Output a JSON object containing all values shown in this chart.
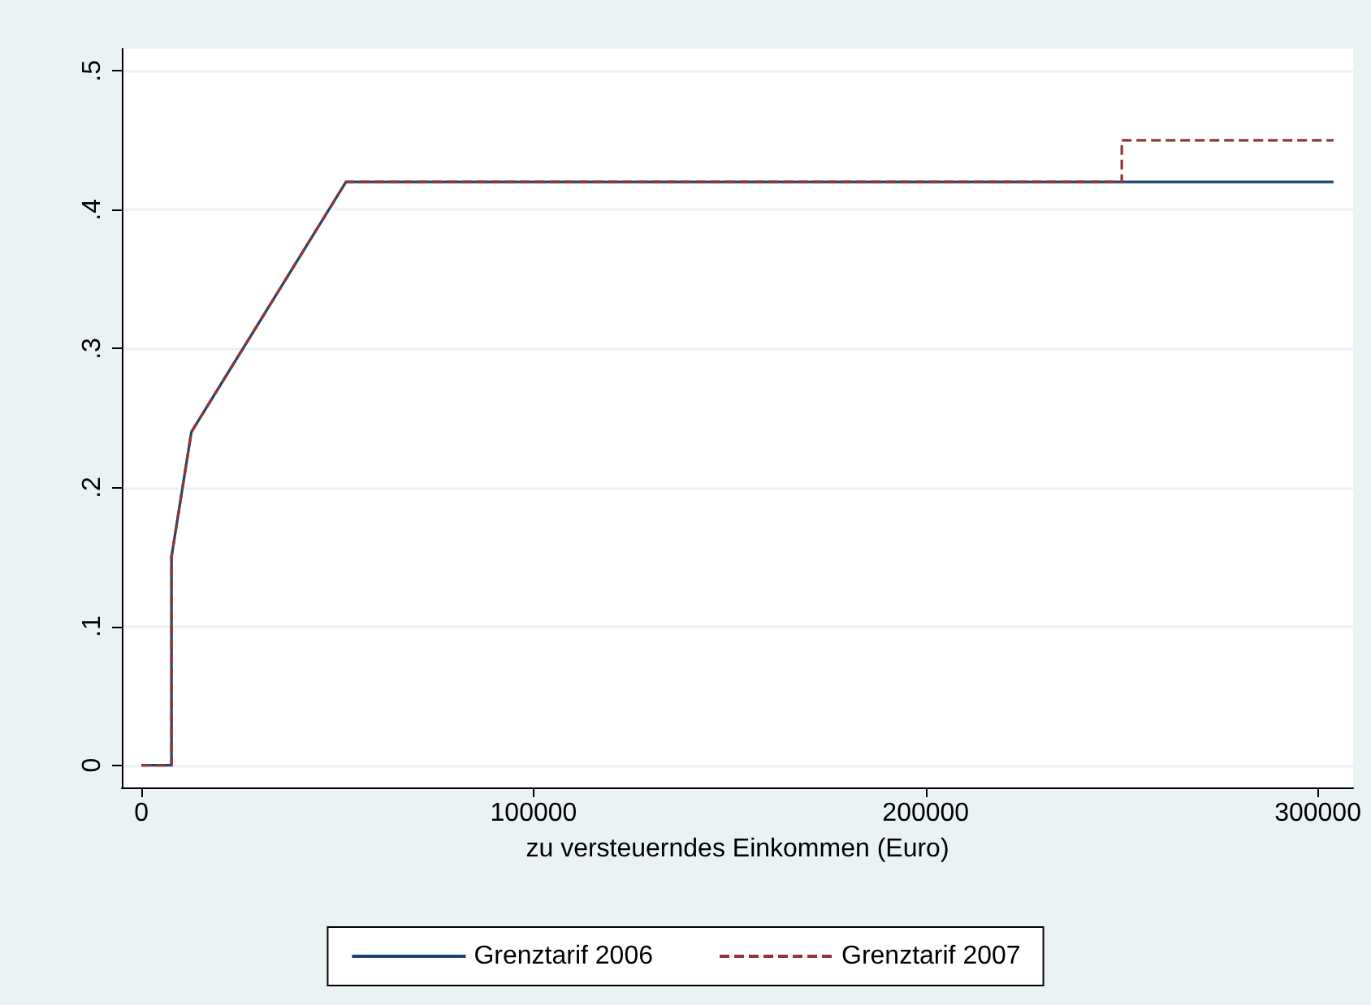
{
  "chart_data": {
    "type": "line",
    "xlabel": "zu versteuerndes Einkommen (Euro)",
    "series": [
      {
        "name": "Grenztarif 2006",
        "color": "#1a476f",
        "line_style": "solid",
        "x": [
          0,
          7664,
          7664,
          12739,
          52151,
          304000
        ],
        "values": [
          0,
          0,
          0.15,
          0.24,
          0.42,
          0.42
        ]
      },
      {
        "name": "Grenztarif 2007",
        "color": "#90353b",
        "line_style": "dashed",
        "x": [
          0,
          7664,
          7664,
          12739,
          52151,
          250000,
          250000,
          304000
        ],
        "values": [
          0,
          0,
          0.15,
          0.24,
          0.42,
          0.42,
          0.45,
          0.45
        ]
      }
    ],
    "xlim": [
      -5000,
      309000
    ],
    "xticks": [
      0,
      100000,
      200000,
      300000
    ],
    "ylim": [
      -0.016,
      0.516
    ],
    "yticks": [
      {
        "value": 0,
        "label": "0"
      },
      {
        "value": 0.1,
        "label": ".1"
      },
      {
        "value": 0.2,
        "label": ".2"
      },
      {
        "value": 0.3,
        "label": ".3"
      },
      {
        "value": 0.4,
        "label": ".4"
      },
      {
        "value": 0.5,
        "label": ".5"
      }
    ],
    "grid": "y",
    "legend": "bottom",
    "marker": "none"
  }
}
